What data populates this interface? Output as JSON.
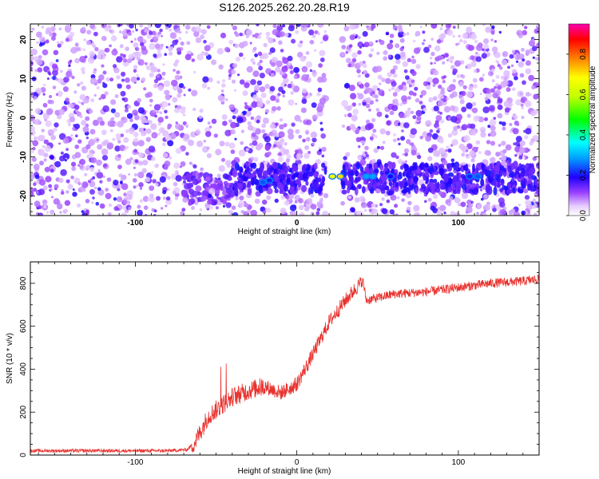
{
  "title": "S126.2025.262.20.28.R19",
  "chart_data": [
    {
      "type": "heatmap",
      "xlabel": "Height of straight line (km)",
      "ylabel": "Frequency (Hz)",
      "xlim": [
        -165,
        150
      ],
      "ylim": [
        -25,
        24
      ],
      "x_ticks": [
        -100,
        0,
        100
      ],
      "x_tick_labels": [
        "-100",
        "0",
        "100"
      ],
      "y_ticks": [
        -20,
        -10,
        0,
        10,
        20
      ],
      "y_tick_labels": [
        "-20",
        "-10",
        "0",
        "10",
        "20"
      ],
      "colorbar": {
        "label": "Normalized spectral amplitude",
        "range": [
          0,
          0.95
        ],
        "ticks": [
          0.0,
          0.2,
          0.4,
          0.6,
          0.8
        ],
        "tick_labels": [
          "0.0",
          "0.2",
          "0.4",
          "0.6",
          "0.8"
        ]
      },
      "carrier_band": {
        "x_range": [
          -40,
          150
        ],
        "freq_range": [
          -19,
          -12
        ]
      },
      "data_gaps_x": [
        [
          18,
          28
        ]
      ],
      "peaks": [
        {
          "x": -21,
          "freq": -16.5,
          "amp": 0.25
        },
        {
          "x": -17,
          "freq": -16,
          "amp": 0.22
        },
        {
          "x": 22,
          "freq": -15,
          "amp": 0.7
        },
        {
          "x": 27,
          "freq": -15,
          "amp": 0.75
        },
        {
          "x": 43,
          "freq": -15,
          "amp": 0.3
        },
        {
          "x": 47,
          "freq": -15,
          "amp": 0.3
        },
        {
          "x": 58,
          "freq": -15,
          "amp": 0.2
        },
        {
          "x": 107,
          "freq": -15,
          "amp": 0.22
        },
        {
          "x": 112,
          "freq": -15,
          "amp": 0.25
        }
      ]
    },
    {
      "type": "line",
      "xlabel": "Height of straight line (km)",
      "ylabel": "SNR (10 * v/v)",
      "xlim": [
        -165,
        150
      ],
      "ylim": [
        0,
        900
      ],
      "x_ticks": [
        -100,
        0,
        100
      ],
      "x_tick_labels": [
        "-100",
        "0",
        "100"
      ],
      "y_ticks": [
        0,
        200,
        400,
        600,
        800
      ],
      "y_tick_labels": [
        "0",
        "200",
        "400",
        "600",
        "800"
      ],
      "color": "#e8322e",
      "series": [
        {
          "x": [
            -165,
            -120,
            -80,
            -68,
            -63,
            -55,
            -45,
            -40,
            -30,
            -20,
            -10,
            0,
            10,
            20,
            30,
            38,
            41,
            43,
            60,
            80,
            100,
            120,
            140,
            150
          ],
          "y": [
            20,
            20,
            20,
            25,
            60,
            180,
            240,
            270,
            300,
            320,
            290,
            330,
            470,
            620,
            720,
            790,
            810,
            720,
            750,
            760,
            780,
            800,
            810,
            820
          ]
        }
      ]
    }
  ]
}
